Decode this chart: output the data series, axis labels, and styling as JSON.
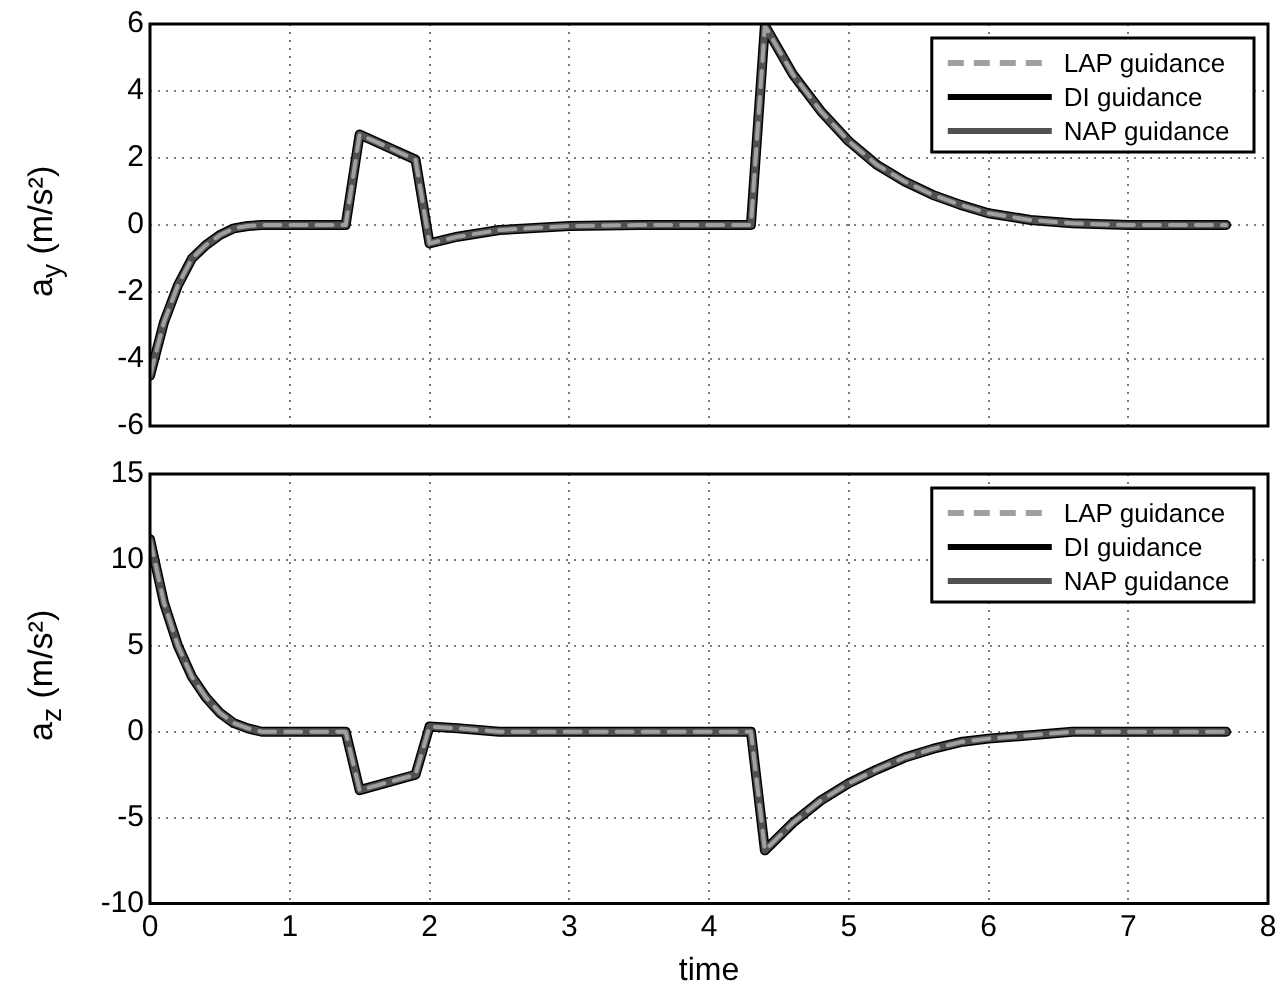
{
  "chart_data": [
    {
      "type": "line",
      "ylabel": "a$_{y}$ (m/s²)",
      "xlim": [
        0,
        8
      ],
      "xticks": [
        0,
        1,
        2,
        3,
        4,
        5,
        6,
        7,
        8
      ],
      "ylim": [
        -6,
        6
      ],
      "yticks": [
        -6,
        -4,
        -2,
        0,
        2,
        4,
        6
      ],
      "grid": true,
      "legend": "top right",
      "tick_labels": "y",
      "x": [
        0,
        0.1,
        0.2,
        0.3,
        0.4,
        0.5,
        0.6,
        0.7,
        0.8,
        1.0,
        1.4,
        1.5,
        1.9,
        2.0,
        2.2,
        2.5,
        3.0,
        3.5,
        4.3,
        4.4,
        4.6,
        4.8,
        5.0,
        5.2,
        5.4,
        5.6,
        5.8,
        6.0,
        6.3,
        6.6,
        7.0,
        7.7
      ],
      "series": [
        {
          "name": "LAP guidance",
          "color": "#a0a0a0",
          "line_style": "dashed",
          "values": [
            -4.5,
            -2.9,
            -1.8,
            -1.0,
            -0.6,
            -0.3,
            -0.1,
            -0.03,
            0,
            0,
            0,
            2.7,
            1.95,
            -0.55,
            -0.35,
            -0.15,
            -0.03,
            0,
            0,
            5.95,
            4.5,
            3.4,
            2.5,
            1.8,
            1.3,
            0.9,
            0.6,
            0.35,
            0.15,
            0.05,
            0,
            0
          ]
        },
        {
          "name": "DI guidance",
          "color": "#000000",
          "line_style": "solid",
          "values": [
            -4.5,
            -2.9,
            -1.8,
            -1.0,
            -0.6,
            -0.3,
            -0.1,
            -0.03,
            0,
            0,
            0,
            2.7,
            1.95,
            -0.55,
            -0.35,
            -0.15,
            -0.03,
            0,
            0,
            5.95,
            4.5,
            3.4,
            2.5,
            1.8,
            1.3,
            0.9,
            0.6,
            0.35,
            0.15,
            0.05,
            0,
            0
          ]
        },
        {
          "name": "NAP guidance",
          "color": "#505050",
          "line_style": "solid",
          "values": [
            -4.5,
            -2.9,
            -1.8,
            -1.0,
            -0.6,
            -0.3,
            -0.1,
            -0.03,
            0,
            0,
            0,
            2.7,
            1.95,
            -0.55,
            -0.35,
            -0.15,
            -0.03,
            0,
            0,
            5.95,
            4.5,
            3.4,
            2.5,
            1.8,
            1.3,
            0.9,
            0.6,
            0.35,
            0.15,
            0.05,
            0,
            0
          ]
        }
      ]
    },
    {
      "type": "line",
      "xlabel": "time",
      "ylabel": "a$_{z}$ (m/s²)",
      "xlim": [
        0,
        8
      ],
      "xticks": [
        0,
        1,
        2,
        3,
        4,
        5,
        6,
        7,
        8
      ],
      "ylim": [
        -10,
        15
      ],
      "yticks": [
        -10,
        -5,
        0,
        5,
        10,
        15
      ],
      "grid": true,
      "legend": "top right",
      "x": [
        0,
        0.1,
        0.2,
        0.3,
        0.4,
        0.5,
        0.6,
        0.7,
        0.8,
        1.0,
        1.4,
        1.5,
        1.9,
        2.0,
        2.2,
        2.5,
        3.0,
        4.3,
        4.4,
        4.6,
        4.8,
        5.0,
        5.2,
        5.4,
        5.6,
        5.8,
        6.0,
        6.3,
        6.6,
        7.0,
        7.7
      ],
      "series": [
        {
          "name": "LAP guidance",
          "color": "#a0a0a0",
          "line_style": "dashed",
          "values": [
            11.2,
            7.5,
            5,
            3.2,
            2,
            1.1,
            0.5,
            0.2,
            0,
            0,
            0,
            -3.4,
            -2.5,
            0.3,
            0.2,
            0,
            0,
            0,
            -6.9,
            -5.3,
            -4.0,
            -3.0,
            -2.2,
            -1.5,
            -1.0,
            -0.6,
            -0.4,
            -0.2,
            0,
            0,
            0
          ]
        },
        {
          "name": "DI guidance",
          "color": "#000000",
          "line_style": "solid",
          "values": [
            11.2,
            7.5,
            5,
            3.2,
            2,
            1.1,
            0.5,
            0.2,
            0,
            0,
            0,
            -3.4,
            -2.5,
            0.3,
            0.2,
            0,
            0,
            0,
            -6.9,
            -5.3,
            -4.0,
            -3.0,
            -2.2,
            -1.5,
            -1.0,
            -0.6,
            -0.4,
            -0.2,
            0,
            0,
            0
          ]
        },
        {
          "name": "NAP guidance",
          "color": "#505050",
          "line_style": "solid",
          "values": [
            11.2,
            7.5,
            5,
            3.2,
            2,
            1.1,
            0.5,
            0.2,
            0,
            0,
            0,
            -3.4,
            -2.5,
            0.3,
            0.2,
            0,
            0,
            0,
            -6.9,
            -5.3,
            -4.0,
            -3.0,
            -2.2,
            -1.5,
            -1.0,
            -0.6,
            -0.4,
            -0.2,
            0,
            0,
            0
          ]
        }
      ]
    }
  ]
}
